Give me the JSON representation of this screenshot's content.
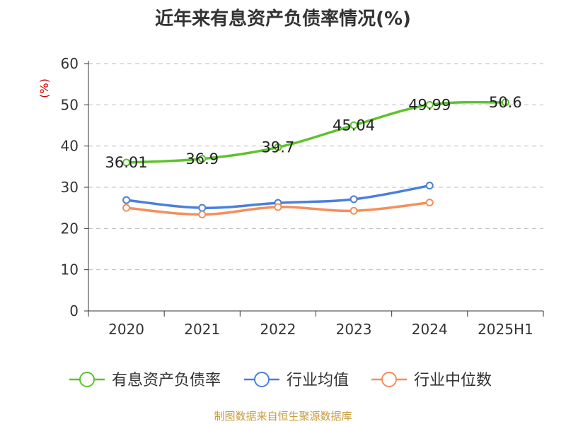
{
  "chart_data": {
    "type": "line",
    "title": "近年来有息资产负债率情况(%)",
    "ylabel": "(%)",
    "xlabel": "",
    "categories": [
      "2020",
      "2021",
      "2022",
      "2023",
      "2024",
      "2025H1"
    ],
    "ylim": [
      0,
      60
    ],
    "yticks": [
      0,
      10,
      20,
      30,
      40,
      50,
      60
    ],
    "grid": true,
    "legend_position": "bottom",
    "series": [
      {
        "name": "有息资产负债率",
        "color": "#5ec22c",
        "values": [
          36.01,
          36.9,
          39.7,
          45.04,
          49.99,
          50.6
        ],
        "data_labels": [
          "36.01",
          "36.9",
          "39.7",
          "45.04",
          "49.99",
          "50.6"
        ]
      },
      {
        "name": "行业均值",
        "color": "#4a7fdb",
        "values": [
          26.9,
          25.0,
          26.2,
          27.1,
          30.4,
          null
        ]
      },
      {
        "name": "行业中位数",
        "color": "#f58e5c",
        "values": [
          25.0,
          23.4,
          25.2,
          24.3,
          26.3,
          null
        ]
      }
    ]
  },
  "footer": {
    "source": "制图数据来自恒生聚源数据库"
  }
}
